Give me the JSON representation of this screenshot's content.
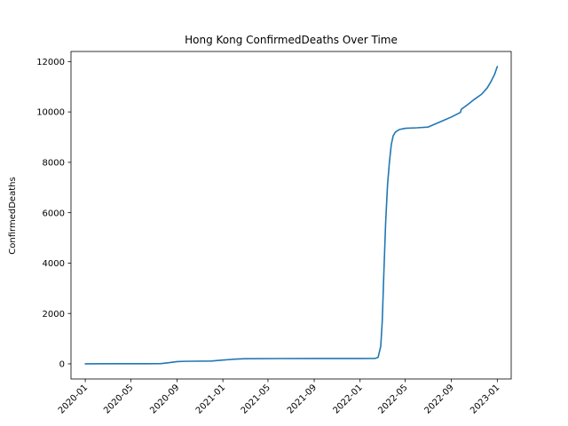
{
  "chart_data": {
    "type": "line",
    "title": "Hong Kong  ConfirmedDeaths Over Time",
    "xlabel": "",
    "ylabel": "ConfirmedDeaths",
    "x_type": "date",
    "xlim": [
      "2019-11-24",
      "2023-02-07"
    ],
    "ylim": [
      -600,
      12400
    ],
    "xticks": [
      "2020-01",
      "2020-05",
      "2020-09",
      "2021-01",
      "2021-05",
      "2021-09",
      "2022-01",
      "2022-05",
      "2022-09",
      "2023-01"
    ],
    "yticks": [
      0,
      2000,
      4000,
      6000,
      8000,
      10000,
      12000
    ],
    "ytick_labels": [
      "0",
      "2000",
      "4000",
      "6000",
      "8000",
      "10000",
      "12000"
    ],
    "grid": false,
    "legend": "none",
    "colors": {
      "line": "#1f77b4",
      "axes": "#000000",
      "background": "#ffffff"
    },
    "series": [
      {
        "x": [
          "2020-01-01",
          "2020-03-01",
          "2020-05-01",
          "2020-06-15",
          "2020-07-20",
          "2020-08-10",
          "2020-09-01",
          "2020-09-20",
          "2020-10-15",
          "2020-12-01",
          "2021-01-01",
          "2021-02-01",
          "2021-03-01",
          "2021-06-01",
          "2021-09-01",
          "2022-01-01",
          "2022-02-10",
          "2022-02-18",
          "2022-02-25",
          "2022-03-01",
          "2022-03-05",
          "2022-03-10",
          "2022-03-15",
          "2022-03-20",
          "2022-03-25",
          "2022-03-30",
          "2022-04-05",
          "2022-04-15",
          "2022-05-01",
          "2022-06-01",
          "2022-07-01",
          "2022-08-01",
          "2022-09-01",
          "2022-09-25",
          "2022-09-27",
          "2022-10-15",
          "2022-11-01",
          "2022-11-20",
          "2022-12-05",
          "2022-12-15",
          "2022-12-25",
          "2023-01-01"
        ],
        "y": [
          0,
          4,
          5,
          5,
          10,
          45,
          90,
          100,
          105,
          110,
          150,
          185,
          205,
          210,
          212,
          213,
          215,
          260,
          700,
          1700,
          3500,
          5600,
          7100,
          8000,
          8700,
          9050,
          9200,
          9300,
          9350,
          9370,
          9400,
          9600,
          9800,
          9980,
          10100,
          10300,
          10500,
          10700,
          10950,
          11200,
          11500,
          11800
        ]
      }
    ]
  }
}
